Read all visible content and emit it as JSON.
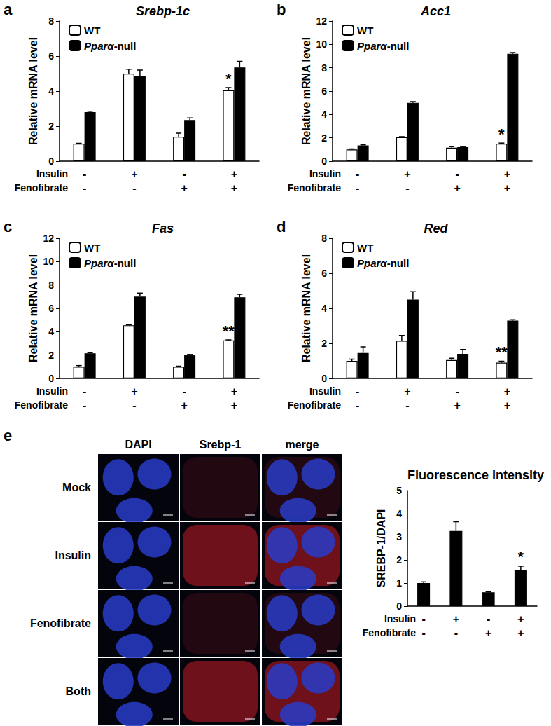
{
  "chart_data": [
    {
      "panel": "a",
      "type": "bar",
      "title": "Srebp-1c",
      "ylabel": "Relative mRNA level",
      "ylim": [
        0,
        8
      ],
      "yticks": [
        0,
        2,
        4,
        6,
        8
      ],
      "grid": false,
      "legend": "upper left",
      "treatments": [
        {
          "label": "Insulin",
          "values": [
            "-",
            "+",
            "-",
            "+"
          ]
        },
        {
          "label": "Fenofibrate",
          "values": [
            "-",
            "-",
            "+",
            "+"
          ]
        }
      ],
      "series": [
        {
          "name": "WT",
          "color": "#ffffff",
          "values": [
            1.0,
            5.0,
            1.4,
            4.05
          ],
          "errors": [
            0.02,
            0.25,
            0.2,
            0.15
          ]
        },
        {
          "name": "Pparα-null",
          "color": "#000000",
          "values": [
            2.8,
            4.85,
            2.35,
            5.35
          ],
          "errors": [
            0.05,
            0.35,
            0.12,
            0.35
          ]
        }
      ],
      "annotations": [
        {
          "series": "WT",
          "index": 3,
          "text": "*"
        }
      ]
    },
    {
      "panel": "b",
      "type": "bar",
      "title": "Acc1",
      "ylabel": "Relative mRNA level",
      "ylim": [
        0,
        12
      ],
      "yticks": [
        0,
        2,
        4,
        6,
        8,
        10,
        12
      ],
      "grid": false,
      "legend": "upper left",
      "treatments": [
        {
          "label": "Insulin",
          "values": [
            "-",
            "+",
            "-",
            "+"
          ]
        },
        {
          "label": "Fenofibrate",
          "values": [
            "-",
            "-",
            "+",
            "+"
          ]
        }
      ],
      "series": [
        {
          "name": "WT",
          "color": "#ffffff",
          "values": [
            1.0,
            2.05,
            1.15,
            1.5
          ],
          "errors": [
            0.05,
            0.05,
            0.1,
            0.05
          ]
        },
        {
          "name": "Pparα-null",
          "color": "#000000",
          "values": [
            1.35,
            5.0,
            1.2,
            9.2
          ],
          "errors": [
            0.05,
            0.1,
            0.05,
            0.1
          ]
        }
      ],
      "annotations": [
        {
          "series": "WT",
          "index": 3,
          "text": "*"
        }
      ]
    },
    {
      "panel": "c",
      "type": "bar",
      "title": "Fas",
      "ylabel": "Relative mRNA level",
      "ylim": [
        0,
        12
      ],
      "yticks": [
        0,
        2,
        4,
        6,
        8,
        10,
        12
      ],
      "grid": false,
      "legend": "upper left",
      "treatments": [
        {
          "label": "Insulin",
          "values": [
            "-",
            "+",
            "-",
            "+"
          ]
        },
        {
          "label": "Fenofibrate",
          "values": [
            "-",
            "-",
            "+",
            "+"
          ]
        }
      ],
      "series": [
        {
          "name": "WT",
          "color": "#ffffff",
          "values": [
            1.0,
            4.55,
            1.0,
            3.25
          ],
          "errors": [
            0.1,
            0.05,
            0.05,
            0.05
          ]
        },
        {
          "name": "Pparα-null",
          "color": "#000000",
          "values": [
            2.15,
            7.0,
            2.0,
            6.95
          ],
          "errors": [
            0.05,
            0.3,
            0.05,
            0.25
          ]
        }
      ],
      "annotations": [
        {
          "series": "WT",
          "index": 3,
          "text": "**"
        }
      ]
    },
    {
      "panel": "d",
      "type": "bar",
      "title": "Red",
      "ylabel": "Relative mRNA level",
      "ylim": [
        0,
        8
      ],
      "yticks": [
        0,
        2,
        4,
        6,
        8
      ],
      "grid": false,
      "legend": "upper left",
      "treatments": [
        {
          "label": "Insulin",
          "values": [
            "-",
            "+",
            "-",
            "+"
          ]
        },
        {
          "label": "Fenofibrate",
          "values": [
            "-",
            "-",
            "+",
            "+"
          ]
        }
      ],
      "series": [
        {
          "name": "WT",
          "color": "#ffffff",
          "values": [
            1.0,
            2.15,
            1.05,
            0.9
          ],
          "errors": [
            0.1,
            0.3,
            0.1,
            0.08
          ]
        },
        {
          "name": "Pparα-null",
          "color": "#000000",
          "values": [
            1.45,
            4.5,
            1.4,
            3.3
          ],
          "errors": [
            0.35,
            0.45,
            0.25,
            0.05
          ]
        }
      ],
      "annotations": [
        {
          "series": "WT",
          "index": 3,
          "text": "**"
        }
      ]
    },
    {
      "type": "bar",
      "title": "Fluorescence intensity",
      "ylabel": "SREBP-1/DAPI",
      "ylim": [
        0,
        5
      ],
      "yticks": [
        0,
        1,
        2,
        3,
        4,
        5
      ],
      "grid": false,
      "treatments": [
        {
          "label": "Insulin",
          "values": [
            "-",
            "+",
            "-",
            "+"
          ]
        },
        {
          "label": "Fenofibrate",
          "values": [
            "-",
            "-",
            "+",
            "+"
          ]
        }
      ],
      "series": [
        {
          "color": "#000000",
          "values": [
            1.0,
            3.25,
            0.6,
            1.55
          ],
          "errors": [
            0.05,
            0.4,
            0.02,
            0.18
          ]
        }
      ],
      "annotations": [
        {
          "series": 0,
          "index": 3,
          "text": "*"
        }
      ]
    }
  ],
  "image_panel": {
    "panel": "e",
    "columns": [
      "DAPI",
      "Srebp-1",
      "merge"
    ],
    "rows": [
      "Mock",
      "Insulin",
      "Fenofibrate",
      "Both"
    ]
  }
}
